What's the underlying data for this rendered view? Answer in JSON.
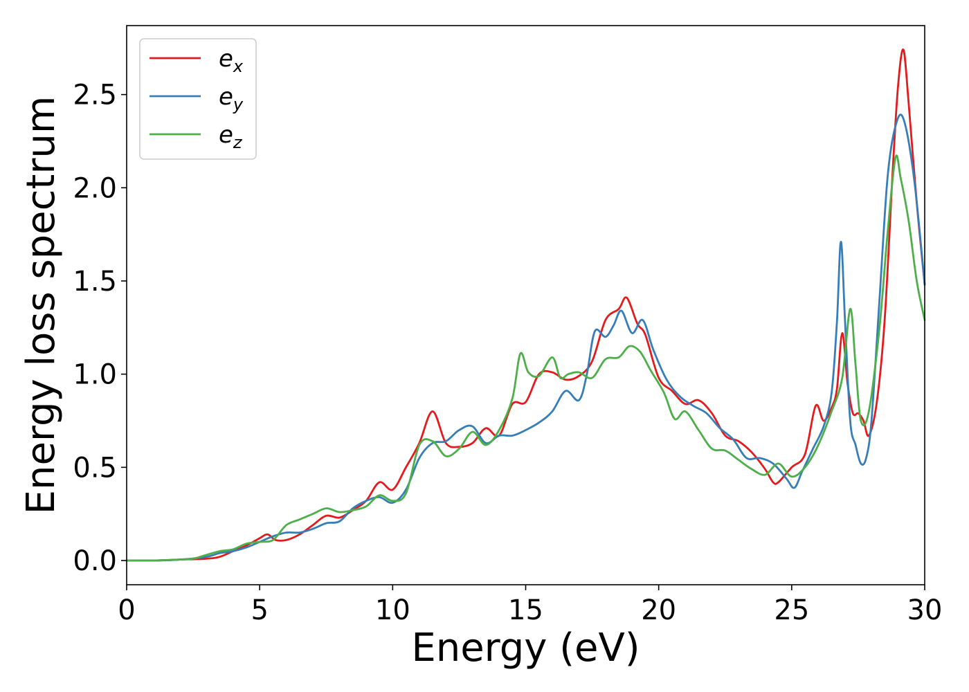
{
  "chart_data": {
    "type": "line",
    "title": "",
    "xlabel": "Energy (eV)",
    "ylabel": "Energy loss spectrum",
    "xlim": [
      0,
      30
    ],
    "ylim": [
      -0.13,
      2.87
    ],
    "xticks": [
      0,
      5,
      10,
      15,
      20,
      25,
      30
    ],
    "yticks": [
      0.0,
      0.5,
      1.0,
      1.5,
      2.0,
      2.5
    ],
    "xtick_labels": [
      "0",
      "5",
      "10",
      "15",
      "20",
      "25",
      "30"
    ],
    "ytick_labels": [
      "0.0",
      "0.5",
      "1.0",
      "1.5",
      "2.0",
      "2.5"
    ],
    "grid": false,
    "legend_position": "top-left",
    "series": [
      {
        "name": "e_x",
        "legend_base": "e",
        "legend_sub": "x",
        "color": "#e41a1c",
        "x": [
          0,
          1,
          2,
          3,
          3.5,
          4,
          4.5,
          5,
          5.3,
          5.6,
          6,
          6.5,
          7,
          7.5,
          8,
          8.5,
          9,
          9.5,
          10,
          10.5,
          11,
          11.5,
          12,
          12.5,
          13,
          13.5,
          14,
          14.5,
          15,
          15.5,
          16,
          16.5,
          17,
          17.5,
          18,
          18.5,
          18.8,
          19.2,
          19.5,
          20,
          20.5,
          21,
          21.5,
          22,
          22.5,
          23,
          23.5,
          24,
          24.3,
          24.5,
          25,
          25.5,
          25.9,
          26.2,
          26.5,
          26.7,
          26.9,
          27.1,
          27.3,
          27.5,
          27.7,
          27.9,
          28.2,
          28.5,
          28.8,
          29,
          29.2,
          29.4,
          29.7,
          30
        ],
        "y": [
          0,
          0,
          0.005,
          0.01,
          0.02,
          0.05,
          0.08,
          0.12,
          0.14,
          0.11,
          0.11,
          0.14,
          0.19,
          0.24,
          0.23,
          0.27,
          0.32,
          0.42,
          0.38,
          0.5,
          0.63,
          0.8,
          0.63,
          0.61,
          0.63,
          0.71,
          0.67,
          0.84,
          0.85,
          1.0,
          1.01,
          0.97,
          0.99,
          1.07,
          1.29,
          1.35,
          1.41,
          1.27,
          1.21,
          0.98,
          0.91,
          0.84,
          0.86,
          0.79,
          0.67,
          0.64,
          0.58,
          0.49,
          0.42,
          0.42,
          0.5,
          0.57,
          0.83,
          0.75,
          0.82,
          0.92,
          1.22,
          0.95,
          0.79,
          0.79,
          0.75,
          0.67,
          0.85,
          1.3,
          2.1,
          2.55,
          2.74,
          2.45,
          1.92,
          1.48
        ]
      },
      {
        "name": "e_y",
        "legend_base": "e",
        "legend_sub": "y",
        "color": "#377eb8",
        "x": [
          0,
          1,
          2,
          3,
          3.5,
          4,
          4.5,
          5,
          5.5,
          6,
          6.5,
          7,
          7.5,
          8,
          8.5,
          9,
          9.5,
          10,
          10.5,
          11,
          11.5,
          12,
          12.5,
          13,
          13.5,
          14,
          14.5,
          15,
          15.5,
          16,
          16.5,
          17,
          17.3,
          17.6,
          18,
          18.3,
          18.6,
          19,
          19.4,
          19.8,
          20.3,
          20.8,
          21.3,
          21.8,
          22.3,
          22.8,
          23.3,
          23.8,
          24.3,
          24.8,
          25.1,
          25.4,
          25.8,
          26.2,
          26.5,
          26.7,
          26.85,
          27,
          27.2,
          27.4,
          27.6,
          27.8,
          28,
          28.3,
          28.6,
          28.9,
          29.2,
          29.6,
          30
        ],
        "y": [
          0,
          0,
          0.005,
          0.02,
          0.04,
          0.05,
          0.07,
          0.1,
          0.13,
          0.15,
          0.15,
          0.17,
          0.2,
          0.21,
          0.28,
          0.32,
          0.34,
          0.31,
          0.38,
          0.55,
          0.63,
          0.64,
          0.7,
          0.72,
          0.63,
          0.67,
          0.67,
          0.7,
          0.74,
          0.8,
          0.91,
          0.86,
          1.0,
          1.23,
          1.2,
          1.26,
          1.34,
          1.22,
          1.29,
          1.13,
          0.97,
          0.88,
          0.83,
          0.79,
          0.71,
          0.65,
          0.55,
          0.55,
          0.52,
          0.44,
          0.39,
          0.48,
          0.6,
          0.72,
          0.9,
          1.28,
          1.71,
          1.3,
          0.75,
          0.62,
          0.52,
          0.55,
          0.75,
          1.4,
          2.05,
          2.33,
          2.37,
          2.05,
          1.48
        ]
      },
      {
        "name": "e_z",
        "legend_base": "e",
        "legend_sub": "z",
        "color": "#4daf4a",
        "x": [
          0,
          1,
          2,
          2.5,
          3,
          3.5,
          4,
          4.5,
          5,
          5.5,
          6,
          6.5,
          7,
          7.5,
          8,
          8.5,
          9,
          9.5,
          10,
          10.5,
          11,
          11.5,
          12,
          12.5,
          13,
          13.5,
          14,
          14.5,
          14.8,
          15.1,
          15.5,
          16,
          16.3,
          16.6,
          17,
          17.5,
          18,
          18.5,
          18.9,
          19.3,
          19.7,
          20.2,
          20.6,
          21,
          21.5,
          22,
          22.5,
          23,
          23.5,
          24,
          24.5,
          25,
          25.5,
          26,
          26.5,
          26.9,
          27.2,
          27.4,
          27.6,
          27.9,
          28.3,
          28.6,
          28.9,
          29.1,
          29.4,
          29.7,
          30
        ],
        "y": [
          0,
          0,
          0.005,
          0.01,
          0.03,
          0.05,
          0.06,
          0.09,
          0.1,
          0.11,
          0.19,
          0.22,
          0.25,
          0.28,
          0.26,
          0.27,
          0.29,
          0.35,
          0.32,
          0.36,
          0.62,
          0.64,
          0.56,
          0.6,
          0.69,
          0.62,
          0.7,
          0.87,
          1.11,
          1.01,
          0.99,
          1.09,
          0.98,
          1.0,
          1.01,
          0.98,
          1.08,
          1.09,
          1.15,
          1.12,
          1.02,
          0.9,
          0.76,
          0.8,
          0.7,
          0.6,
          0.59,
          0.54,
          0.49,
          0.46,
          0.52,
          0.45,
          0.5,
          0.62,
          0.8,
          0.98,
          1.35,
          1.05,
          0.75,
          0.8,
          1.25,
          1.75,
          2.16,
          2.05,
          1.82,
          1.5,
          1.29
        ]
      }
    ]
  }
}
